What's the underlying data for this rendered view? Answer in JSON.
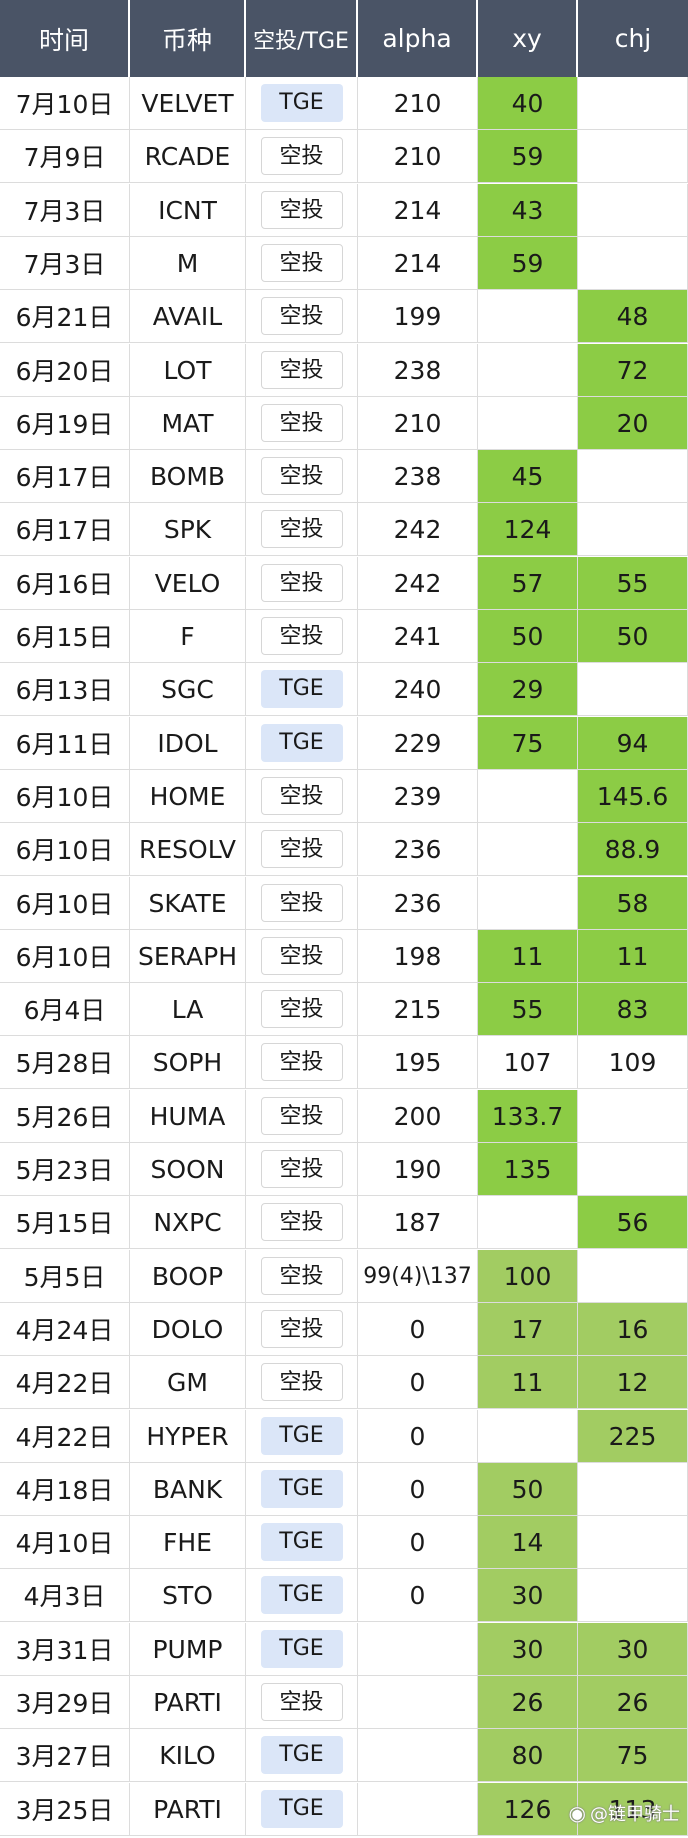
{
  "table": {
    "headers": [
      "时间",
      "币种",
      "空投/TGE",
      "alpha",
      "xy",
      "chj"
    ],
    "colors": {
      "header_bg": "#4a5466",
      "green": "#8ccc45",
      "green_light": "#a2cc62",
      "tge_badge": "#dbe6f8"
    },
    "rows": [
      {
        "date": "7月10日",
        "coin": "VELVET",
        "type": "TGE",
        "alpha": "210",
        "xy": "40",
        "chj": ""
      },
      {
        "date": "7月9日",
        "coin": "RCADE",
        "type": "空投",
        "alpha": "210",
        "xy": "59",
        "chj": ""
      },
      {
        "date": "7月3日",
        "coin": "ICNT",
        "type": "空投",
        "alpha": "214",
        "xy": "43",
        "chj": ""
      },
      {
        "date": "7月3日",
        "coin": "M",
        "type": "空投",
        "alpha": "214",
        "xy": "59",
        "chj": ""
      },
      {
        "date": "6月21日",
        "coin": "AVAIL",
        "type": "空投",
        "alpha": "199",
        "xy": "",
        "chj": "48"
      },
      {
        "date": "6月20日",
        "coin": "LOT",
        "type": "空投",
        "alpha": "238",
        "xy": "",
        "chj": "72"
      },
      {
        "date": "6月19日",
        "coin": "MAT",
        "type": "空投",
        "alpha": "210",
        "xy": "",
        "chj": "20"
      },
      {
        "date": "6月17日",
        "coin": "BOMB",
        "type": "空投",
        "alpha": "238",
        "xy": "45",
        "chj": ""
      },
      {
        "date": "6月17日",
        "coin": "SPK",
        "type": "空投",
        "alpha": "242",
        "xy": "124",
        "chj": ""
      },
      {
        "date": "6月16日",
        "coin": "VELO",
        "type": "空投",
        "alpha": "242",
        "xy": "57",
        "chj": "55"
      },
      {
        "date": "6月15日",
        "coin": "F",
        "type": "空投",
        "alpha": "241",
        "xy": "50",
        "chj": "50"
      },
      {
        "date": "6月13日",
        "coin": "SGC",
        "type": "TGE",
        "alpha": "240",
        "xy": "29",
        "chj": ""
      },
      {
        "date": "6月11日",
        "coin": "IDOL",
        "type": "TGE",
        "alpha": "229",
        "xy": "75",
        "chj": "94"
      },
      {
        "date": "6月10日",
        "coin": "HOME",
        "type": "空投",
        "alpha": "239",
        "xy": "",
        "chj": "145.6"
      },
      {
        "date": "6月10日",
        "coin": "RESOLV",
        "type": "空投",
        "alpha": "236",
        "xy": "",
        "chj": "88.9"
      },
      {
        "date": "6月10日",
        "coin": "SKATE",
        "type": "空投",
        "alpha": "236",
        "xy": "",
        "chj": "58"
      },
      {
        "date": "6月10日",
        "coin": "SERAPH",
        "type": "空投",
        "alpha": "198",
        "xy": "11",
        "chj": "11"
      },
      {
        "date": "6月4日",
        "coin": "LA",
        "type": "空投",
        "alpha": "215",
        "xy": "55",
        "chj": "83"
      },
      {
        "date": "5月28日",
        "coin": "SOPH",
        "type": "空投",
        "alpha": "195",
        "xy": "107",
        "chj": "109",
        "nofill": true
      },
      {
        "date": "5月26日",
        "coin": "HUMA",
        "type": "空投",
        "alpha": "200",
        "xy": "133.7",
        "chj": ""
      },
      {
        "date": "5月23日",
        "coin": "SOON",
        "type": "空投",
        "alpha": "190",
        "xy": "135",
        "chj": ""
      },
      {
        "date": "5月15日",
        "coin": "NXPC",
        "type": "空投",
        "alpha": "187",
        "xy": "",
        "chj": "56"
      },
      {
        "date": "5月5日",
        "coin": "BOOP",
        "type": "空投",
        "alpha": "99(4)\\137",
        "xy": "100",
        "chj": ""
      },
      {
        "date": "4月24日",
        "coin": "DOLO",
        "type": "空投",
        "alpha": "0",
        "xy": "17",
        "chj": "16"
      },
      {
        "date": "4月22日",
        "coin": "GM",
        "type": "空投",
        "alpha": "0",
        "xy": "11",
        "chj": "12"
      },
      {
        "date": "4月22日",
        "coin": "HYPER",
        "type": "TGE",
        "alpha": "0",
        "xy": "",
        "chj": "225"
      },
      {
        "date": "4月18日",
        "coin": "BANK",
        "type": "TGE",
        "alpha": "0",
        "xy": "50",
        "chj": ""
      },
      {
        "date": "4月10日",
        "coin": "FHE",
        "type": "TGE",
        "alpha": "0",
        "xy": "14",
        "chj": ""
      },
      {
        "date": "4月3日",
        "coin": "STO",
        "type": "TGE",
        "alpha": "0",
        "xy": "30",
        "chj": ""
      },
      {
        "date": "3月31日",
        "coin": "PUMP",
        "type": "TGE",
        "alpha": "",
        "xy": "30",
        "chj": "30"
      },
      {
        "date": "3月29日",
        "coin": "PARTI",
        "type": "空投",
        "alpha": "",
        "xy": "26",
        "chj": "26"
      },
      {
        "date": "3月27日",
        "coin": "KILO",
        "type": "TGE",
        "alpha": "",
        "xy": "80",
        "chj": "75"
      },
      {
        "date": "3月25日",
        "coin": "PARTI",
        "type": "TGE",
        "alpha": "",
        "xy": "126",
        "chj": "113"
      }
    ]
  },
  "watermark": {
    "icon": "weibo-icon",
    "text": "@链甲骑士"
  }
}
